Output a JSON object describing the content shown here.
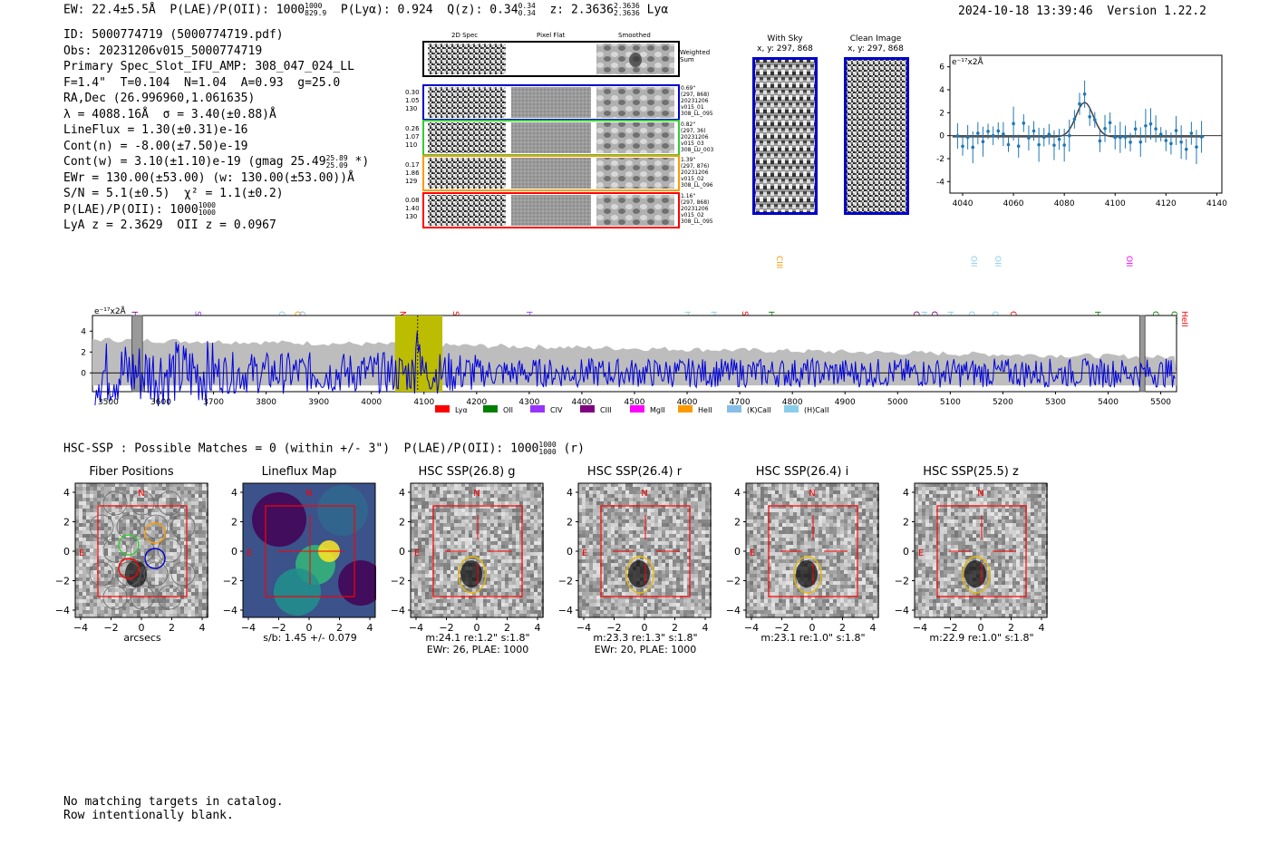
{
  "header": {
    "ew": "EW: 22.4±5.5Å",
    "plae_label": "P(LAE)/P(OII): 1000",
    "plae_hi": "1000",
    "plae_lo": "829.9",
    "plya": "P(Lyα): 0.924",
    "qz_label": "Q(z): 0.34",
    "qz_hi": "0.34",
    "qz_lo": "0.34",
    "z_label": "z: 2.3636",
    "z_hi": "2.3636",
    "z_lo": "2.3636",
    "z_line": "Lyα",
    "timestamp": "2024-10-18 13:39:46",
    "version": "Version 1.22.2"
  },
  "info": {
    "id": "ID: 5000774719 (5000774719.pdf)",
    "obs": "Obs: 20231206v015_5000774719",
    "primary": "Primary Spec_Slot_IFU_AMP: 308_047_024_LL",
    "fwhm": "F=1.4\"  T=0.104  N=1.04  A=0.93  g=25.0",
    "radec": "RA,Dec (26.996960,1.061635)",
    "lambda": "λ = 4088.16Å  σ = 3.40(±0.88)Å",
    "lineflux": "LineFlux = 1.30(±0.31)e-16",
    "cont_n": "Cont(n) = -8.00(±7.50)e-19",
    "cont_w": "Cont(w) = 3.10(±1.10)e-19 (gmag 25.49",
    "gmag_hi": "25.89",
    "gmag_lo": "25.09",
    "cont_w_end": "*)",
    "ewr": "EWr = 130.00(±53.00) (w: 130.00(±53.00))Å",
    "sn": "S/N = 5.1(±0.5)  χ² = 1.1(±0.2)",
    "plae": "P(LAE)/P(OII): 1000",
    "plae_hi": "1000",
    "plae_lo": "1000",
    "lya_z": "LyA z = 2.3629  OII z = 0.0967"
  },
  "cutouts": {
    "col_headers": [
      "2D Spec",
      "Pixel Flat",
      "Smoothed"
    ],
    "weighted_sum": "Weighted Sum",
    "rows": [
      {
        "left": [
          "0.30",
          "1.05",
          "130"
        ],
        "right": [
          "0.69\"",
          "(297, 868)",
          "20231206",
          "v015_01",
          "308_LL_095"
        ],
        "color": "#0000cc"
      },
      {
        "left": [
          "0.26",
          "1.07",
          "110"
        ],
        "right": [
          "0.82\"",
          "(297, 36)",
          "20231206",
          "v015_03",
          "308_LU_003"
        ],
        "color": "#33cc33"
      },
      {
        "left": [
          "0.17",
          "1.86",
          "129"
        ],
        "right": [
          "1.39\"",
          "(297, 876)",
          "20231206",
          "v015_02",
          "308_LL_096"
        ],
        "color": "#ff9900"
      },
      {
        "left": [
          "0.08",
          "1.40",
          "130"
        ],
        "right": [
          "1.16\"",
          "(297, 868)",
          "20231206",
          "v015_02",
          "308_LL_095"
        ],
        "color": "#ff0000"
      }
    ]
  },
  "sky_panels": {
    "with_sky_title": "With Sky",
    "with_sky_xy": "x, y: 297, 868",
    "clean_title": "Clean Image",
    "clean_xy": "x, y: 297, 868"
  },
  "fit_plot": {
    "unit_label": "e⁻¹⁷x2Å",
    "x_ticks": [
      "4040",
      "4060",
      "4080",
      "4100",
      "4120",
      "4140"
    ],
    "y_ticks": [
      "6",
      "4",
      "2",
      "0",
      "-2",
      "-4"
    ]
  },
  "spectrum": {
    "unit_label": "e⁻¹⁷x2Å",
    "x_ticks": [
      "3500",
      "3600",
      "3700",
      "3800",
      "3900",
      "4000",
      "4100",
      "4200",
      "4300",
      "4400",
      "4500",
      "4600",
      "4700",
      "4800",
      "4900",
      "5000",
      "5100",
      "5200",
      "5300",
      "5400",
      "5500"
    ],
    "y_ticks": [
      "4",
      "2",
      "0"
    ],
    "lines_low": [
      "HeII",
      "SiIV",
      "OII",
      "CIV",
      "OII",
      "NV",
      "SiII",
      "HeII",
      "Hγ",
      "Hγ",
      "SiIV",
      "Hγ",
      "CII",
      "Hβ",
      "CIII",
      "Hβ",
      "OIII",
      "OIII",
      "CIV",
      "Hβ",
      "OIII",
      "OIII",
      "HeII"
    ],
    "lines_high": [
      "CIII",
      "OII",
      "OII",
      "OII"
    ],
    "legend": [
      "Lyα",
      "OII",
      "CIV",
      "CIII",
      "MgII",
      "HeII",
      "(K)CaII",
      "(H)CaII"
    ],
    "legend_colors": [
      "#ff0000",
      "#008000",
      "#9933ff",
      "#800080",
      "#ff00ff",
      "#ff9900",
      "#87bde8",
      "#87ceeb"
    ]
  },
  "hsc": {
    "line_label": "HSC-SSP : Possible Matches = 0 (within +/- 3\")  P(LAE)/P(OII): 1000",
    "plae_hi": "1000",
    "plae_lo": "1000",
    "plae_suffix": "(r)",
    "panels": [
      {
        "title": "Fiber Positions",
        "cap1": "arcsecs",
        "cap2": ""
      },
      {
        "title": "Lineflux Map",
        "cap1": "s/b: 1.45 +/- 0.079",
        "cap2": ""
      },
      {
        "title": "HSC SSP(26.8) g",
        "cap1": "m:24.1  re:1.2\"  s:1.8\"",
        "cap2": "EWr: 26, PLAE: 1000"
      },
      {
        "title": "HSC SSP(26.4) r",
        "cap1": "m:23.3  re:1.3\"  s:1.8\"",
        "cap2": "EWr: 20, PLAE: 1000"
      },
      {
        "title": "HSC SSP(26.4) i",
        "cap1": "m:23.1  re:1.0\"  s:1.8\"",
        "cap2": ""
      },
      {
        "title": "HSC SSP(25.5) z",
        "cap1": "m:22.9  re:1.0\"  s:1.8\"",
        "cap2": ""
      }
    ],
    "axis_ticks": [
      "4",
      "2",
      "0",
      "−2",
      "−4"
    ],
    "compass_n": "N",
    "compass_e": "E"
  },
  "footer": {
    "line1": "No matching targets in catalog.",
    "line2": "Row intentionally blank."
  }
}
